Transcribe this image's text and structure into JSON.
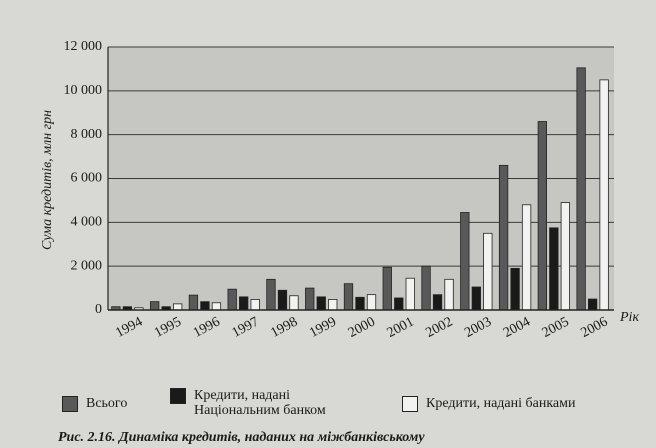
{
  "chart_data": {
    "type": "bar",
    "y_label": "Сума кредитів, млн грн",
    "x_label": "Рік",
    "caption": "Рис. 2.16. Динаміка кредитів, наданих на міжбанківському",
    "categories": [
      "1994",
      "1995",
      "1996",
      "1997",
      "1998",
      "1999",
      "2000",
      "2001",
      "2002",
      "2003",
      "2004",
      "2005",
      "2006"
    ],
    "series": [
      {
        "name": "Всього",
        "color": "#595959",
        "values": [
          150,
          380,
          680,
          950,
          1400,
          1000,
          1200,
          1950,
          2000,
          4450,
          6600,
          8600,
          11050
        ]
      },
      {
        "name": "Кредити, надані Національним банком",
        "color": "#1a1a1a",
        "values": [
          150,
          150,
          380,
          600,
          900,
          600,
          580,
          550,
          700,
          1050,
          1900,
          3750,
          500
        ]
      },
      {
        "name": "Кредити, надані банками",
        "color": "#f2f2f0",
        "values": [
          100,
          280,
          330,
          480,
          650,
          480,
          700,
          1450,
          1400,
          3500,
          4800,
          4900,
          10500
        ]
      }
    ],
    "ylim": [
      0,
      12000
    ],
    "yticks": [
      0,
      {
        "value": 2000,
        "label": "2 000"
      },
      {
        "value": 4000,
        "label": "4 000"
      },
      {
        "value": 6000,
        "label": "6 000"
      },
      {
        "value": 8000,
        "label": "8 000"
      },
      {
        "value": 10000,
        "label": "10 000"
      },
      {
        "value": 12000,
        "label": "12 000"
      }
    ],
    "grid": true
  }
}
